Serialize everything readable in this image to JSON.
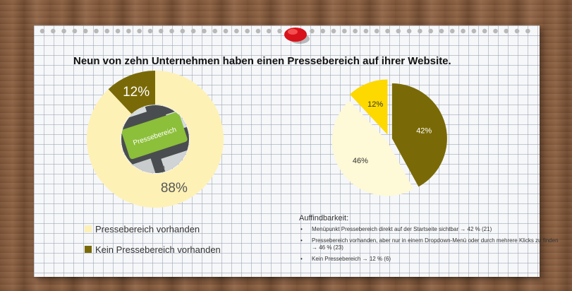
{
  "title": "Neun von zehn Unternehmen haben einen Pressebereich auf ihrer Website.",
  "center_image": {
    "key_label": "Pressebereich",
    "key_small": "alt"
  },
  "legend_left": [
    {
      "label": "Pressebereich vorhanden",
      "color": "#fdf1b6"
    },
    {
      "label": "Kein Pressebereich vorhanden",
      "color": "#7a6a07"
    }
  ],
  "info": {
    "heading": "Auffindbarkeit:",
    "bullet": "•",
    "items": [
      "Menüpunkt Pressebereich direkt auf der Startseite sichtbar → 42 % (21)",
      "Pressebereich vorhanden, aber nur in einem Dropdown-Menü oder durch mehrere Klicks zu finden → 46 % (23)",
      "Kein Pressebereich → 12 % (6)"
    ]
  },
  "chart_data": [
    {
      "type": "pie",
      "variant": "donut",
      "title": "",
      "slices": [
        {
          "label": "Pressebereich vorhanden",
          "value": 88,
          "display": "88%",
          "color": "#fdf1b6"
        },
        {
          "label": "Kein Pressebereich vorhanden",
          "value": 12,
          "display": "12%",
          "color": "#7a6a07"
        }
      ],
      "start": "top, clockwise"
    },
    {
      "type": "pie",
      "title": "",
      "slices": [
        {
          "label": "Menüpunkt Pressebereich direkt auf der Startseite sichtbar",
          "value": 42,
          "display": "42%",
          "color": "#7a6a07"
        },
        {
          "label": "Pressebereich vorhanden, aber nur in einem Dropdown-Menü oder durch mehrere Klicks zu finden",
          "value": 46,
          "display": "46%",
          "color": "#fef9d6"
        },
        {
          "label": "Kein Pressebereich",
          "value": 12,
          "display": "12%",
          "color": "#fdd900"
        }
      ],
      "start": "top, clockwise",
      "exploded": true
    }
  ]
}
